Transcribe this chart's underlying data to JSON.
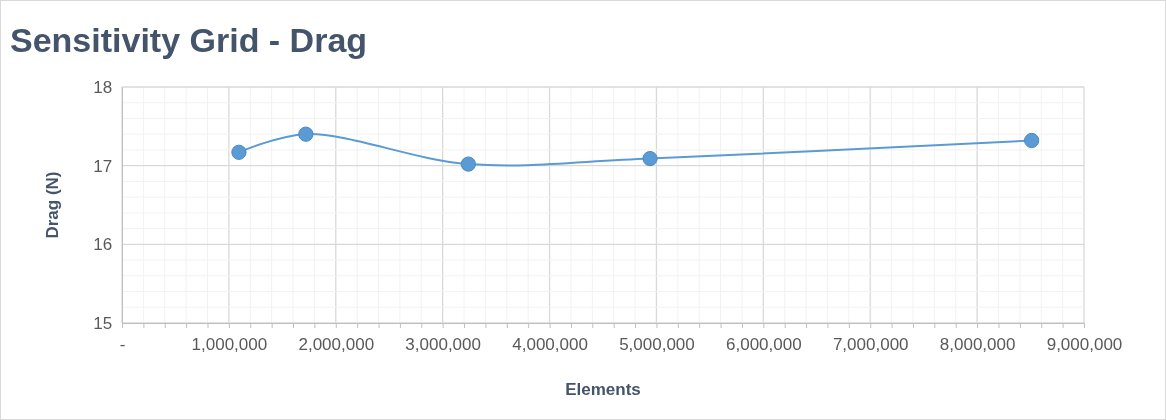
{
  "chart_data": {
    "type": "line",
    "title": "Sensitivity Grid - Drag",
    "xlabel": "Elements",
    "ylabel": "Drag (N)",
    "x": [
      1094000,
      1720000,
      3240000,
      4940000,
      8510000
    ],
    "series": [
      {
        "color": "#5b9bd5",
        "values": [
          17.17,
          17.4,
          17.02,
          17.09,
          17.32
        ]
      }
    ],
    "xlim": [
      0,
      9000000
    ],
    "ylim": [
      15,
      18
    ],
    "xticks": [
      {
        "value": 0,
        "label": "-"
      },
      {
        "value": 200000,
        "label": null
      },
      {
        "value": 400000,
        "label": null
      },
      {
        "value": 600000,
        "label": null
      },
      {
        "value": 800000,
        "label": null
      },
      {
        "value": 1000000,
        "label": "1,000,000"
      },
      {
        "value": 1200000,
        "label": null
      },
      {
        "value": 1400000,
        "label": null
      },
      {
        "value": 1600000,
        "label": null
      },
      {
        "value": 1800000,
        "label": null
      },
      {
        "value": 2000000,
        "label": "2,000,000"
      },
      {
        "value": 2200000,
        "label": null
      },
      {
        "value": 2400000,
        "label": null
      },
      {
        "value": 2600000,
        "label": null
      },
      {
        "value": 2800000,
        "label": null
      },
      {
        "value": 3000000,
        "label": "3,000,000"
      },
      {
        "value": 3200000,
        "label": null
      },
      {
        "value": 3400000,
        "label": null
      },
      {
        "value": 3600000,
        "label": null
      },
      {
        "value": 3800000,
        "label": null
      },
      {
        "value": 4000000,
        "label": "4,000,000"
      },
      {
        "value": 4200000,
        "label": null
      },
      {
        "value": 4400000,
        "label": null
      },
      {
        "value": 4600000,
        "label": null
      },
      {
        "value": 4800000,
        "label": null
      },
      {
        "value": 5000000,
        "label": "5,000,000"
      },
      {
        "value": 5200000,
        "label": null
      },
      {
        "value": 5400000,
        "label": null
      },
      {
        "value": 5600000,
        "label": null
      },
      {
        "value": 5800000,
        "label": null
      },
      {
        "value": 6000000,
        "label": "6,000,000"
      },
      {
        "value": 6200000,
        "label": null
      },
      {
        "value": 6400000,
        "label": null
      },
      {
        "value": 6600000,
        "label": null
      },
      {
        "value": 6800000,
        "label": null
      },
      {
        "value": 7000000,
        "label": "7,000,000"
      },
      {
        "value": 7200000,
        "label": null
      },
      {
        "value": 7400000,
        "label": null
      },
      {
        "value": 7600000,
        "label": null
      },
      {
        "value": 7800000,
        "label": null
      },
      {
        "value": 8000000,
        "label": "8,000,000"
      },
      {
        "value": 8200000,
        "label": null
      },
      {
        "value": 8400000,
        "label": null
      },
      {
        "value": 8600000,
        "label": null
      },
      {
        "value": 8800000,
        "label": null
      },
      {
        "value": 9000000,
        "label": "9,000,000"
      }
    ],
    "yticks": [
      15,
      {
        "value": 15.2,
        "label": null
      },
      {
        "value": 15.4,
        "label": null
      },
      {
        "value": 15.6,
        "label": null
      },
      {
        "value": 15.8,
        "label": null
      },
      16,
      {
        "value": 16.2,
        "label": null
      },
      {
        "value": 16.4,
        "label": null
      },
      {
        "value": 16.6,
        "label": null
      },
      {
        "value": 16.8,
        "label": null
      },
      17,
      {
        "value": 17.2,
        "label": null
      },
      {
        "value": 17.4,
        "label": null
      },
      {
        "value": 17.6,
        "label": null
      },
      {
        "value": 17.8,
        "label": null
      },
      18
    ],
    "grid": true,
    "marker": "circle",
    "line_style": "solid"
  }
}
